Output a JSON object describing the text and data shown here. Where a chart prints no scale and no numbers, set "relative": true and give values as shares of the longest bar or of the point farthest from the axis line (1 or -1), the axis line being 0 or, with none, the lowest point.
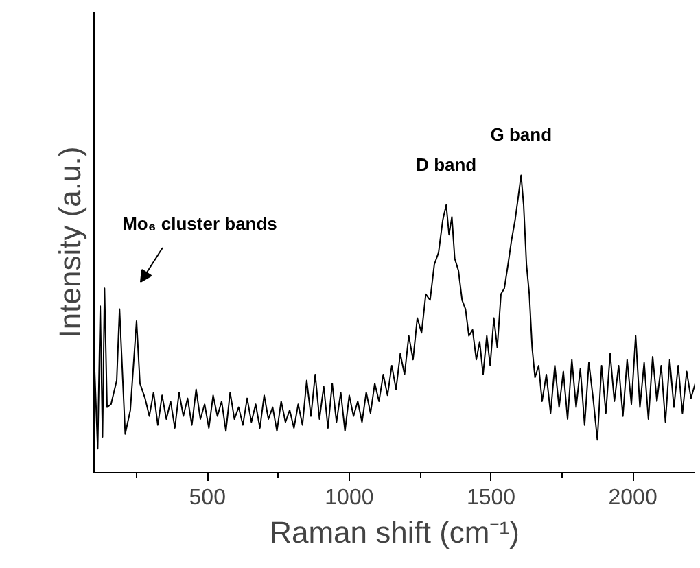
{
  "chart_data": {
    "type": "line",
    "relative": true,
    "xlabel": "Raman shift (cm⁻¹)",
    "ylabel": "Intensity (a.u.)",
    "color": "#000000",
    "marker": "none",
    "line_style": "solid",
    "grid": false,
    "legend": false,
    "xlim": [
      100,
      2220
    ],
    "xticks": [
      {
        "value": 250,
        "label": null
      },
      500,
      {
        "value": 750,
        "label": null
      },
      1000,
      {
        "value": 1250,
        "label": null
      },
      1500,
      {
        "value": 1750,
        "label": null
      },
      2000
    ],
    "annotations": [
      "Mo₆ cluster bands",
      {
        "text": "D band",
        "x": 1342,
        "y": 0.9
      },
      {
        "text": "G band",
        "x": 1606,
        "y": 1.0
      }
    ],
    "x": [
      100,
      113,
      122,
      130,
      137,
      146,
      160,
      180,
      190,
      210,
      228,
      250,
      262,
      280,
      295,
      310,
      325,
      340,
      355,
      370,
      385,
      400,
      415,
      430,
      445,
      460,
      475,
      490,
      505,
      520,
      535,
      550,
      565,
      580,
      595,
      610,
      625,
      640,
      655,
      670,
      685,
      700,
      715,
      730,
      745,
      760,
      775,
      790,
      805,
      820,
      835,
      850,
      865,
      880,
      895,
      910,
      925,
      940,
      955,
      970,
      985,
      1000,
      1015,
      1030,
      1045,
      1060,
      1075,
      1090,
      1105,
      1120,
      1135,
      1150,
      1165,
      1180,
      1195,
      1210,
      1225,
      1240,
      1255,
      1270,
      1285,
      1300,
      1315,
      1330,
      1342,
      1352,
      1362,
      1372,
      1385,
      1398,
      1410,
      1422,
      1435,
      1448,
      1460,
      1472,
      1485,
      1497,
      1510,
      1522,
      1535,
      1547,
      1560,
      1572,
      1585,
      1595,
      1606,
      1615,
      1625,
      1635,
      1645,
      1655,
      1668,
      1680,
      1695,
      1710,
      1725,
      1740,
      1755,
      1770,
      1785,
      1800,
      1815,
      1830,
      1845,
      1860,
      1875,
      1890,
      1905,
      1920,
      1935,
      1950,
      1965,
      1980,
      1995,
      2010,
      2025,
      2040,
      2055,
      2070,
      2085,
      2100,
      2115,
      2130,
      2145,
      2160,
      2175,
      2190,
      2205,
      2220
    ],
    "values": [
      0.4,
      0.08,
      0.56,
      0.12,
      0.62,
      0.22,
      0.23,
      0.31,
      0.55,
      0.13,
      0.21,
      0.51,
      0.3,
      0.25,
      0.19,
      0.27,
      0.16,
      0.26,
      0.18,
      0.24,
      0.15,
      0.27,
      0.19,
      0.25,
      0.16,
      0.28,
      0.18,
      0.23,
      0.15,
      0.26,
      0.19,
      0.24,
      0.14,
      0.27,
      0.18,
      0.22,
      0.16,
      0.25,
      0.17,
      0.23,
      0.15,
      0.26,
      0.18,
      0.22,
      0.14,
      0.24,
      0.17,
      0.21,
      0.15,
      0.23,
      0.16,
      0.31,
      0.19,
      0.33,
      0.18,
      0.29,
      0.15,
      0.3,
      0.17,
      0.27,
      0.14,
      0.26,
      0.19,
      0.24,
      0.17,
      0.27,
      0.2,
      0.3,
      0.24,
      0.33,
      0.26,
      0.36,
      0.28,
      0.4,
      0.33,
      0.46,
      0.38,
      0.52,
      0.47,
      0.6,
      0.58,
      0.7,
      0.74,
      0.85,
      0.9,
      0.8,
      0.86,
      0.72,
      0.68,
      0.58,
      0.55,
      0.46,
      0.48,
      0.38,
      0.44,
      0.33,
      0.46,
      0.36,
      0.52,
      0.42,
      0.6,
      0.62,
      0.7,
      0.78,
      0.85,
      0.92,
      1.0,
      0.9,
      0.7,
      0.6,
      0.42,
      0.32,
      0.36,
      0.24,
      0.33,
      0.2,
      0.36,
      0.22,
      0.34,
      0.18,
      0.38,
      0.22,
      0.35,
      0.16,
      0.37,
      0.25,
      0.11,
      0.36,
      0.2,
      0.4,
      0.24,
      0.36,
      0.19,
      0.38,
      0.23,
      0.46,
      0.22,
      0.37,
      0.18,
      0.39,
      0.24,
      0.36,
      0.17,
      0.38,
      0.22,
      0.36,
      0.2,
      0.34,
      0.25,
      0.3
    ]
  }
}
